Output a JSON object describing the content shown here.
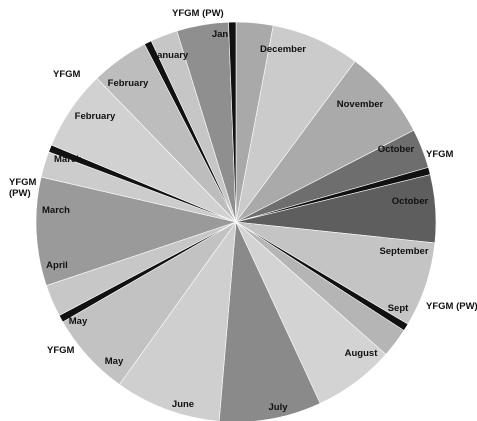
{
  "chart_data": {
    "type": "pie",
    "slices": [
      {
        "label": "Jan",
        "value": 3.0,
        "color": "#a9a9a9",
        "label_inside": true
      },
      {
        "label": "December",
        "value": 7.2,
        "color": "#cbcbcb",
        "label_inside": true
      },
      {
        "label": "November",
        "value": 7.3,
        "color": "#aaaaaa",
        "label_inside": true
      },
      {
        "label": "October",
        "value": 3.2,
        "color": "#6e6e6e",
        "label_inside": true
      },
      {
        "label": "YFGM",
        "value": 0.6,
        "color": "#111111",
        "label_inside": false
      },
      {
        "label": "October",
        "value": 5.5,
        "color": "#5e5e5e",
        "label_inside": true
      },
      {
        "label": "September",
        "value": 6.9,
        "color": "#c4c4c4",
        "label_inside": true
      },
      {
        "label": "YFGM (PW)",
        "value": 0.6,
        "color": "#111111",
        "label_inside": false
      },
      {
        "label": "Sept",
        "value": 2.4,
        "color": "#b5b5b5",
        "label_inside": true
      },
      {
        "label": "August",
        "value": 6.6,
        "color": "#d3d3d3",
        "label_inside": true
      },
      {
        "label": "July",
        "value": 8.3,
        "color": "#8a8a8a",
        "label_inside": true
      },
      {
        "label": "June",
        "value": 8.6,
        "color": "#cfcfcf",
        "label_inside": true
      },
      {
        "label": "May",
        "value": 6.8,
        "color": "#c2c2c2",
        "label_inside": true
      },
      {
        "label": "YFGM",
        "value": 0.6,
        "color": "#111111",
        "label_inside": false
      },
      {
        "label": "May",
        "value": 2.6,
        "color": "#c7c7c7",
        "label_inside": true
      },
      {
        "label": "April",
        "value": 8.8,
        "color": "#9a9a9a",
        "label_inside": true
      },
      {
        "label": "March",
        "value": 2.1,
        "color": "#cccccc",
        "label_inside": true
      },
      {
        "label": "YFGM (PW)",
        "value": 0.6,
        "color": "#111111",
        "label_inside": false
      },
      {
        "label": "March",
        "value": 6.5,
        "color": "#d1d1d1",
        "label_inside": true
      },
      {
        "label": "February",
        "value": 4.7,
        "color": "#bdbdbd",
        "label_inside": true
      },
      {
        "label": "YFGM",
        "value": 0.6,
        "color": "#111111",
        "label_inside": false
      },
      {
        "label": "February",
        "value": 2.2,
        "color": "#c6c6c6",
        "label_inside": true
      },
      {
        "label": "January",
        "value": 4.2,
        "color": "#8f8f8f",
        "label_inside": true
      },
      {
        "label": "YFGM (PW)",
        "value": 0.6,
        "color": "#111111",
        "label_inside": false
      }
    ],
    "title": "",
    "legend": "none"
  }
}
